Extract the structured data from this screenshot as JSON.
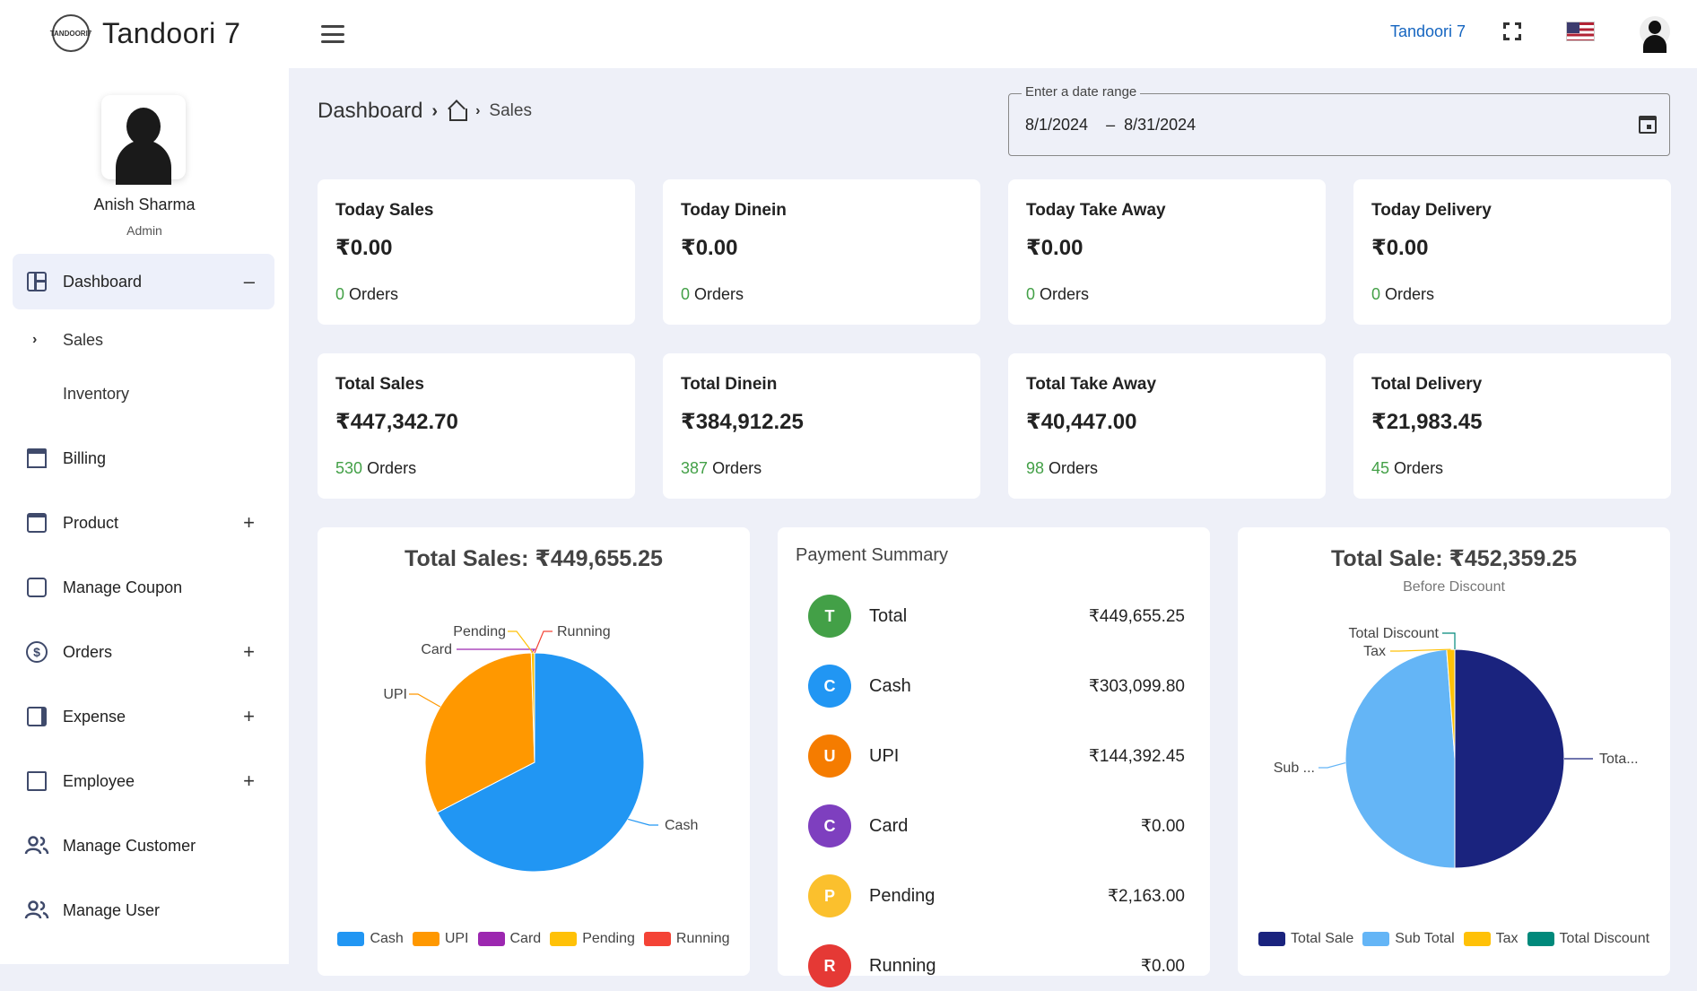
{
  "header": {
    "brand_name": "Tandoori 7",
    "brand_logo_text": "TANDOORI7",
    "restaurant_link": "Tandoori 7",
    "icons": [
      "menu-icon",
      "fullscreen-icon",
      "us-flag-icon",
      "user-icon"
    ]
  },
  "user": {
    "name": "Anish Sharma",
    "role": "Admin"
  },
  "sidebar": {
    "items": [
      {
        "label": "Dashboard",
        "icon": "dashboard-icon",
        "toggle": "–"
      },
      {
        "label": "Sales",
        "sub": true,
        "chevron": "›"
      },
      {
        "label": "Inventory",
        "sub": true
      },
      {
        "label": "Billing",
        "icon": "billing-icon"
      },
      {
        "label": "Product",
        "icon": "product-icon",
        "toggle": "+"
      },
      {
        "label": "Manage Coupon",
        "icon": "coupon-icon"
      },
      {
        "label": "Orders",
        "icon": "orders-icon",
        "toggle": "+"
      },
      {
        "label": "Expense",
        "icon": "expense-icon",
        "toggle": "+"
      },
      {
        "label": "Employee",
        "icon": "employee-icon",
        "toggle": "+"
      },
      {
        "label": "Manage Customer",
        "icon": "customer-icon"
      },
      {
        "label": "Manage User",
        "icon": "user-group-icon"
      }
    ]
  },
  "breadcrumb": {
    "title": "Dashboard",
    "current": "Sales"
  },
  "date_range": {
    "legend": "Enter a date range",
    "start": "8/1/2024",
    "separator": "–",
    "end": "8/31/2024"
  },
  "cards": [
    {
      "title": "Today Sales",
      "value": "₹0.00",
      "orders_count": "0",
      "orders_label": "Orders"
    },
    {
      "title": "Today Dinein",
      "value": "₹0.00",
      "orders_count": "0",
      "orders_label": "Orders"
    },
    {
      "title": "Today Take Away",
      "value": "₹0.00",
      "orders_count": "0",
      "orders_label": "Orders"
    },
    {
      "title": "Today Delivery",
      "value": "₹0.00",
      "orders_count": "0",
      "orders_label": "Orders"
    },
    {
      "title": "Total Sales",
      "value": "₹447,342.70",
      "orders_count": "530",
      "orders_label": "Orders"
    },
    {
      "title": "Total Dinein",
      "value": "₹384,912.25",
      "orders_count": "387",
      "orders_label": "Orders"
    },
    {
      "title": "Total Take Away",
      "value": "₹40,447.00",
      "orders_count": "98",
      "orders_label": "Orders"
    },
    {
      "title": "Total Delivery",
      "value": "₹21,983.45",
      "orders_count": "45",
      "orders_label": "Orders"
    }
  ],
  "payment_summary": {
    "title": "Payment Summary",
    "rows": [
      {
        "letter": "T",
        "label": "Total",
        "amount": "₹449,655.25",
        "color": "#43a047"
      },
      {
        "letter": "C",
        "label": "Cash",
        "amount": "₹303,099.80",
        "color": "#2196f3"
      },
      {
        "letter": "U",
        "label": "UPI",
        "amount": "₹144,392.45",
        "color": "#f57c00"
      },
      {
        "letter": "C",
        "label": "Card",
        "amount": "₹0.00",
        "color": "#7e3fbf"
      },
      {
        "letter": "P",
        "label": "Pending",
        "amount": "₹2,163.00",
        "color": "#fbc02d"
      },
      {
        "letter": "R",
        "label": "Running",
        "amount": "₹0.00",
        "color": "#e53935"
      }
    ]
  },
  "chart_data": [
    {
      "type": "pie",
      "title": "Total Sales: ₹449,655.25",
      "categories": [
        "Cash",
        "UPI",
        "Card",
        "Pending",
        "Running"
      ],
      "values": [
        303099.8,
        144392.45,
        0.0,
        2163.0,
        0.0
      ],
      "colors": [
        "#2196f3",
        "#ff9800",
        "#9c27b0",
        "#ffc107",
        "#f44336"
      ],
      "slice_labels": [
        "Cash",
        "UPI",
        "Card",
        "Pending",
        "Running"
      ],
      "legend_position": "bottom"
    },
    {
      "type": "pie",
      "title": "Total Sale: ₹452,359.25",
      "subtitle": "Before Discount",
      "categories": [
        "Total Sale",
        "Sub Total",
        "Tax",
        "Total Discount"
      ],
      "values": [
        226179.6,
        220779.6,
        5400.0,
        0.0
      ],
      "colors": [
        "#1a237e",
        "#64b5f6",
        "#ffc107",
        "#00897b"
      ],
      "slice_labels": [
        "Tota...",
        "Sub ...",
        "Tax",
        "Total Discount"
      ],
      "legend_position": "bottom"
    }
  ]
}
